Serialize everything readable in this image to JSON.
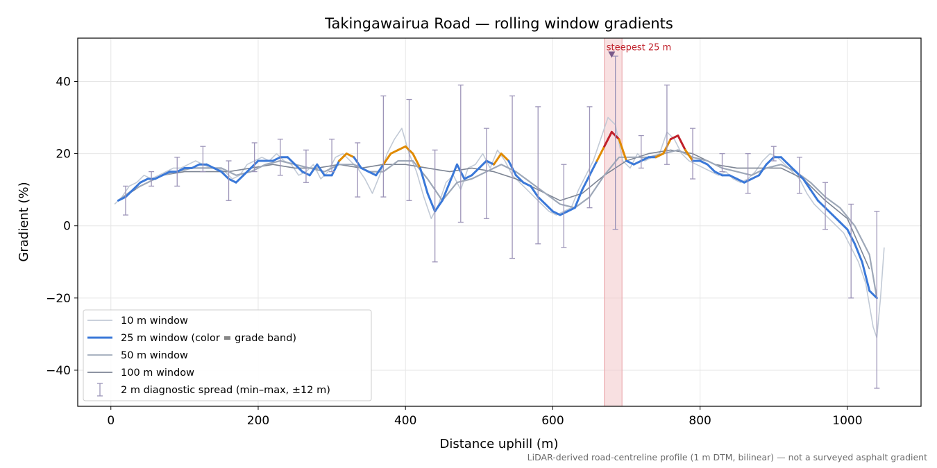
{
  "chart_data": {
    "type": "line",
    "title": "Takingawairua Road — rolling window gradients",
    "xlabel": "Distance uphill (m)",
    "ylabel": "Gradient (%)",
    "xlim": [
      -45,
      1100
    ],
    "ylim": [
      -50,
      52
    ],
    "x_ticks": [
      0,
      200,
      400,
      600,
      800,
      1000
    ],
    "y_ticks": [
      -40,
      -20,
      0,
      20,
      40
    ],
    "x_tick_labels": [
      "0",
      "200",
      "400",
      "600",
      "800",
      "1000"
    ],
    "y_tick_labels": [
      "−40",
      "−20",
      "0",
      "20",
      "40"
    ],
    "grid": true,
    "legend_position": "lower-left",
    "note": "LiDAR-derived road-centreline profile (1 m DTM, bilinear) — not a surveyed asphalt gradient",
    "highlight": {
      "x_start": 670,
      "x_end": 694,
      "label": "steepest 25 m",
      "marker_x": 680,
      "marker_y": 47.5,
      "color": "#f3c6c9"
    },
    "grade_band_colors": {
      "moderate": "#3a78d8",
      "steep": "#e08a00",
      "very_steep": "#c0202a"
    },
    "series": [
      {
        "name": "10 m window",
        "color": "#c2cad6",
        "x": [
          5,
          15,
          25,
          35,
          45,
          55,
          65,
          75,
          85,
          95,
          105,
          115,
          125,
          135,
          145,
          155,
          165,
          175,
          185,
          195,
          205,
          215,
          225,
          235,
          245,
          255,
          265,
          275,
          285,
          295,
          305,
          315,
          325,
          335,
          345,
          355,
          365,
          375,
          385,
          395,
          405,
          415,
          425,
          435,
          445,
          455,
          465,
          475,
          485,
          495,
          505,
          515,
          525,
          535,
          545,
          555,
          565,
          575,
          585,
          595,
          605,
          615,
          625,
          635,
          645,
          655,
          665,
          675,
          685,
          695,
          705,
          715,
          725,
          735,
          745,
          755,
          765,
          775,
          785,
          795,
          805,
          815,
          825,
          835,
          845,
          855,
          865,
          875,
          885,
          895,
          905,
          915,
          925,
          935,
          945,
          955,
          965,
          975,
          985,
          995,
          1005,
          1015,
          1025,
          1035,
          1040,
          1045,
          1050
        ],
        "y": [
          6,
          8,
          11,
          12,
          14,
          13,
          14,
          15,
          16,
          16,
          17,
          18,
          17,
          16,
          16,
          15,
          13,
          14,
          17,
          18,
          19,
          18,
          20,
          18,
          17,
          14,
          15,
          17,
          13,
          15,
          19,
          20,
          18,
          16,
          13,
          9,
          14,
          20,
          24,
          27,
          20,
          15,
          8,
          2,
          6,
          12,
          14,
          10,
          16,
          17,
          20,
          16,
          21,
          18,
          14,
          12,
          10,
          8,
          6,
          4,
          3,
          4,
          5,
          10,
          14,
          18,
          24,
          30,
          28,
          18,
          16,
          20,
          18,
          19,
          20,
          26,
          24,
          20,
          18,
          17,
          16,
          15,
          14,
          15,
          13,
          12,
          13,
          15,
          18,
          20,
          19,
          17,
          15,
          13,
          9,
          6,
          4,
          2,
          0,
          -2,
          -6,
          -10,
          -16,
          -28,
          -31,
          -20,
          -6
        ]
      },
      {
        "name": "25 m window (color = grade band)",
        "color": "#3a78d8",
        "x": [
          10,
          20,
          30,
          40,
          50,
          60,
          70,
          80,
          90,
          100,
          110,
          120,
          130,
          140,
          150,
          160,
          170,
          180,
          190,
          200,
          210,
          220,
          230,
          240,
          250,
          260,
          270,
          280,
          290,
          300,
          310,
          320,
          330,
          340,
          350,
          360,
          370,
          380,
          390,
          400,
          410,
          420,
          430,
          440,
          450,
          460,
          470,
          480,
          490,
          500,
          510,
          520,
          530,
          540,
          550,
          560,
          570,
          580,
          590,
          600,
          610,
          620,
          630,
          640,
          650,
          660,
          670,
          680,
          690,
          700,
          710,
          720,
          730,
          740,
          750,
          760,
          770,
          780,
          790,
          800,
          810,
          820,
          830,
          840,
          850,
          860,
          870,
          880,
          890,
          900,
          910,
          920,
          930,
          940,
          950,
          960,
          970,
          980,
          990,
          1000,
          1010,
          1020,
          1030,
          1040
        ],
        "y": [
          7,
          8,
          10,
          12,
          13,
          13,
          14,
          15,
          15,
          16,
          16,
          17,
          17,
          16,
          15,
          13,
          12,
          14,
          16,
          18,
          18,
          18,
          19,
          19,
          17,
          15,
          14,
          17,
          14,
          14,
          18,
          20,
          19,
          16,
          15,
          14,
          17,
          20,
          21,
          22,
          20,
          16,
          9,
          4,
          7,
          12,
          17,
          13,
          14,
          16,
          18,
          17,
          20,
          18,
          14,
          12,
          11,
          8,
          6,
          4,
          3,
          4,
          5,
          10,
          14,
          18,
          22,
          26,
          24,
          18,
          17,
          18,
          19,
          19,
          20,
          24,
          25,
          21,
          18,
          18,
          17,
          15,
          14,
          14,
          13,
          12,
          13,
          14,
          17,
          19,
          19,
          17,
          15,
          13,
          10,
          7,
          5,
          3,
          1,
          -1,
          -5,
          -10,
          -18,
          -20
        ]
      },
      {
        "name": "50 m window",
        "color": "#9ea8b8",
        "x": [
          10,
          30,
          50,
          70,
          90,
          110,
          130,
          150,
          170,
          190,
          210,
          230,
          250,
          270,
          290,
          310,
          330,
          350,
          370,
          390,
          410,
          430,
          450,
          470,
          490,
          510,
          530,
          550,
          570,
          590,
          610,
          630,
          650,
          670,
          690,
          710,
          730,
          750,
          770,
          790,
          810,
          830,
          850,
          870,
          890,
          910,
          930,
          950,
          970,
          990,
          1010,
          1030,
          1040
        ],
        "y": [
          7,
          10,
          12,
          14,
          15,
          16,
          16,
          16,
          14,
          15,
          17,
          18,
          17,
          16,
          15,
          17,
          17,
          15,
          15,
          18,
          18,
          13,
          7,
          12,
          13,
          15,
          17,
          15,
          12,
          9,
          6,
          5,
          8,
          14,
          19,
          19,
          19,
          20,
          21,
          19,
          18,
          16,
          15,
          14,
          16,
          17,
          15,
          12,
          8,
          5,
          0,
          -8,
          -20
        ]
      },
      {
        "name": "100 m window",
        "color": "#7d8594",
        "x": [
          10,
          40,
          70,
          100,
          130,
          160,
          190,
          220,
          250,
          280,
          310,
          340,
          370,
          400,
          430,
          460,
          490,
          520,
          550,
          580,
          610,
          640,
          670,
          700,
          730,
          760,
          790,
          820,
          850,
          880,
          910,
          940,
          970,
          1000,
          1030
        ],
        "y": [
          7,
          11,
          14,
          15,
          15,
          15,
          16,
          17,
          16,
          16,
          17,
          16,
          17,
          17,
          16,
          15,
          16,
          15,
          13,
          10,
          7,
          9,
          14,
          18,
          20,
          21,
          20,
          17,
          16,
          16,
          16,
          13,
          7,
          2,
          -12
        ]
      },
      {
        "name": "2 m diagnostic spread (min–max, ±12 m)",
        "color": "#9c94b8",
        "type": "errorbar",
        "x": [
          20,
          55,
          90,
          125,
          160,
          195,
          230,
          265,
          300,
          335,
          370,
          405,
          440,
          475,
          510,
          545,
          580,
          615,
          650,
          685,
          720,
          755,
          790,
          830,
          865,
          900,
          935,
          970,
          1005,
          1040
        ],
        "low": [
          3,
          11,
          11,
          15,
          7,
          15,
          14,
          12,
          15,
          8,
          8,
          7,
          -10,
          1,
          2,
          -9,
          -5,
          -6,
          5,
          -1,
          16,
          17,
          13,
          15,
          9,
          18,
          9,
          -1,
          -20,
          -45
        ],
        "high": [
          11,
          15,
          19,
          22,
          18,
          23,
          24,
          21,
          24,
          23,
          36,
          35,
          21,
          39,
          27,
          36,
          33,
          17,
          33,
          47,
          25,
          39,
          27,
          20,
          20,
          22,
          19,
          12,
          6,
          4
        ]
      }
    ]
  }
}
